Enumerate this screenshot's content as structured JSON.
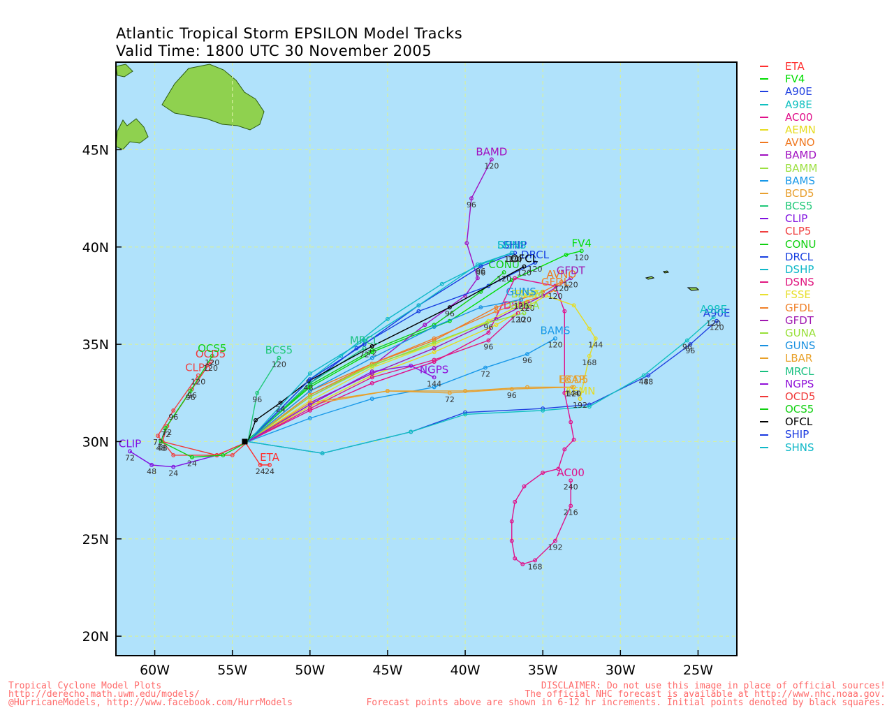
{
  "title": {
    "line1": "Atlantic Tropical Storm EPSILON Model Tracks",
    "line2": "Valid Time: 1800 UTC 30 November 2005"
  },
  "map": {
    "lon_range": [
      -62.5,
      -22.5
    ],
    "lat_range": [
      19,
      49.5
    ],
    "ocean_color": "#b0e2fb",
    "land_color": "#8fd14f",
    "grid_color": "#d6f0a0",
    "x_ticks": [
      "60W",
      "55W",
      "50W",
      "45W",
      "40W",
      "35W",
      "30W",
      "25W"
    ],
    "y_ticks": [
      "45N",
      "40N",
      "35N",
      "30N",
      "25N",
      "20N"
    ]
  },
  "legend": [
    {
      "name": "ETA",
      "color": "#ff3030"
    },
    {
      "name": "FV4",
      "color": "#00dd00"
    },
    {
      "name": "A90E",
      "color": "#2040e0"
    },
    {
      "name": "A98E",
      "color": "#10c0c0"
    },
    {
      "name": "AC00",
      "color": "#e0108a"
    },
    {
      "name": "AEMN",
      "color": "#e6dc20"
    },
    {
      "name": "AVNO",
      "color": "#f07820"
    },
    {
      "name": "BAMD",
      "color": "#a010c0"
    },
    {
      "name": "BAMM",
      "color": "#9ce040"
    },
    {
      "name": "BAMS",
      "color": "#1898e8"
    },
    {
      "name": "BCD5",
      "color": "#e8a030"
    },
    {
      "name": "BCS5",
      "color": "#20c878"
    },
    {
      "name": "CLIP",
      "color": "#8010e0"
    },
    {
      "name": "CLP5",
      "color": "#f04040"
    },
    {
      "name": "CONU",
      "color": "#10d010"
    },
    {
      "name": "DRCL",
      "color": "#1840e0"
    },
    {
      "name": "DSHP",
      "color": "#10b8c8"
    },
    {
      "name": "DSNS",
      "color": "#e01880"
    },
    {
      "name": "FSSE",
      "color": "#e8e030"
    },
    {
      "name": "GFDL",
      "color": "#f08028"
    },
    {
      "name": "GFDT",
      "color": "#a018b0"
    },
    {
      "name": "GUNA",
      "color": "#98e038"
    },
    {
      "name": "GUNS",
      "color": "#1890e0"
    },
    {
      "name": "LBAR",
      "color": "#e8a028"
    },
    {
      "name": "MRCL",
      "color": "#18c080"
    },
    {
      "name": "NGPS",
      "color": "#9010d8"
    },
    {
      "name": "OCD5",
      "color": "#f03838"
    },
    {
      "name": "OCS5",
      "color": "#10d010"
    },
    {
      "name": "OFCL",
      "color": "#000000"
    },
    {
      "name": "SHIP",
      "color": "#1838e0"
    },
    {
      "name": "SHNS",
      "color": "#10b8c8"
    }
  ],
  "tracks": [
    {
      "name": "ETA",
      "color": "#ff3030",
      "points": [
        [
          -54.2,
          30.0
        ],
        [
          -53.2,
          28.8
        ],
        [
          -52.6,
          28.8
        ]
      ],
      "hours": [
        "24",
        "24"
      ]
    },
    {
      "name": "FV4",
      "color": "#00dd00",
      "points": [
        [
          -54.0,
          30.1
        ],
        [
          -50.0,
          32.8
        ],
        [
          -46.0,
          34.6
        ],
        [
          -41.0,
          36.2
        ],
        [
          -37.0,
          38.3
        ],
        [
          -33.5,
          39.6
        ],
        [
          -32.5,
          39.8
        ]
      ],
      "hours": [
        "120"
      ]
    },
    {
      "name": "A90E",
      "color": "#2040e0",
      "points": [
        [
          -54.0,
          30.0
        ],
        [
          -49.2,
          29.4
        ],
        [
          -43.5,
          30.5
        ],
        [
          -40.0,
          31.5
        ],
        [
          -35.0,
          31.7
        ],
        [
          -32.0,
          31.9
        ],
        [
          -28.2,
          33.4
        ],
        [
          -25.5,
          35.0
        ],
        [
          -23.8,
          36.2
        ]
      ],
      "hours": [
        "48",
        "96",
        "120"
      ]
    },
    {
      "name": "A98E",
      "color": "#10c0c0",
      "points": [
        [
          -54.0,
          30.0
        ],
        [
          -49.2,
          29.4
        ],
        [
          -43.5,
          30.5
        ],
        [
          -40.0,
          31.4
        ],
        [
          -35.0,
          31.6
        ],
        [
          -32.0,
          31.8
        ],
        [
          -28.5,
          33.4
        ],
        [
          -25.7,
          35.2
        ],
        [
          -24.0,
          36.4
        ]
      ],
      "hours": [
        "48",
        "96",
        "120"
      ]
    },
    {
      "name": "AC00",
      "color": "#e0108a",
      "points": [
        [
          -54.0,
          30.0
        ],
        [
          -50.0,
          31.6
        ],
        [
          -46.0,
          33.0
        ],
        [
          -42.0,
          34.1
        ],
        [
          -38.5,
          35.6
        ],
        [
          -36.8,
          38.4
        ],
        [
          -34.2,
          38.0
        ],
        [
          -33.6,
          36.7
        ],
        [
          -33.6,
          32.5
        ],
        [
          -33.2,
          31.0
        ],
        [
          -33.0,
          30.1
        ],
        [
          -33.6,
          29.6
        ],
        [
          -34.0,
          28.6
        ],
        [
          -35.0,
          28.4
        ],
        [
          -36.2,
          27.7
        ],
        [
          -36.8,
          26.9
        ],
        [
          -37.0,
          25.9
        ],
        [
          -37.0,
          24.9
        ],
        [
          -36.8,
          24.0
        ],
        [
          -36.3,
          23.7
        ],
        [
          -35.5,
          23.9
        ],
        [
          -34.2,
          24.9
        ],
        [
          -33.2,
          26.7
        ],
        [
          -33.2,
          28.0
        ]
      ],
      "hours": [
        "168",
        "192",
        "216",
        "240"
      ]
    },
    {
      "name": "AEMN",
      "color": "#e6dc20",
      "points": [
        [
          -54.0,
          30.0
        ],
        [
          -50.0,
          31.8
        ],
        [
          -46.0,
          33.4
        ],
        [
          -42.0,
          34.6
        ],
        [
          -38.0,
          36.0
        ],
        [
          -34.8,
          37.5
        ],
        [
          -33.0,
          37.0
        ],
        [
          -32.0,
          35.8
        ],
        [
          -31.6,
          35.3
        ],
        [
          -32.0,
          34.4
        ],
        [
          -32.6,
          32.2
        ]
      ],
      "hours": [
        "144",
        "168",
        "192"
      ]
    },
    {
      "name": "AVNO",
      "color": "#f07820",
      "points": [
        [
          -54.0,
          30.0
        ],
        [
          -50.0,
          32.6
        ],
        [
          -46.0,
          34.0
        ],
        [
          -42.0,
          35.2
        ],
        [
          -38.0,
          36.9
        ],
        [
          -35.0,
          37.7
        ],
        [
          -33.8,
          38.2
        ]
      ],
      "hours": [
        "120"
      ]
    },
    {
      "name": "BAMD",
      "color": "#a010c0",
      "points": [
        [
          -54.0,
          30.0
        ],
        [
          -50.0,
          32.3
        ],
        [
          -45.8,
          34.0
        ],
        [
          -42.6,
          36.0
        ],
        [
          -40.0,
          37.5
        ],
        [
          -39.2,
          38.4
        ],
        [
          -39.9,
          40.2
        ],
        [
          -39.6,
          42.5
        ],
        [
          -38.3,
          44.5
        ]
      ],
      "hours": [
        "96",
        "120"
      ]
    },
    {
      "name": "BAMM",
      "color": "#9ce040",
      "points": [
        [
          -54.0,
          30.0
        ],
        [
          -50.0,
          32.4
        ],
        [
          -45.8,
          34.0
        ],
        [
          -42.0,
          35.0
        ],
        [
          -38.5,
          36.2
        ],
        [
          -36.0,
          37.2
        ]
      ],
      "hours": [
        "96",
        "120"
      ]
    },
    {
      "name": "BAMS",
      "color": "#1898e8",
      "points": [
        [
          -54.0,
          30.0
        ],
        [
          -50.0,
          31.2
        ],
        [
          -46.0,
          32.2
        ],
        [
          -42.0,
          32.8
        ],
        [
          -38.7,
          33.8
        ],
        [
          -36.0,
          34.5
        ],
        [
          -34.2,
          35.3
        ]
      ],
      "hours": [
        "72",
        "96",
        "120"
      ]
    },
    {
      "name": "BCD5",
      "color": "#e8a030",
      "points": [
        [
          -54.0,
          30.0
        ],
        [
          -50.0,
          31.9
        ],
        [
          -45.0,
          32.6
        ],
        [
          -41.0,
          32.5
        ],
        [
          -37.0,
          32.7
        ],
        [
          -33.0,
          32.8
        ]
      ],
      "hours": [
        "72",
        "96",
        "120"
      ]
    },
    {
      "name": "BCS5",
      "color": "#20c878",
      "points": [
        [
          -54.0,
          30.0
        ],
        [
          -53.4,
          32.5
        ],
        [
          -52.0,
          34.3
        ]
      ],
      "hours": [
        "96",
        "120"
      ]
    },
    {
      "name": "CLIP",
      "color": "#8010e0",
      "points": [
        [
          -54.0,
          30.0
        ],
        [
          -56.0,
          29.3
        ],
        [
          -58.8,
          28.7
        ],
        [
          -60.2,
          28.8
        ],
        [
          -61.6,
          29.5
        ]
      ],
      "hours": [
        "24",
        "48",
        "72"
      ]
    },
    {
      "name": "CLP5",
      "color": "#f04040",
      "points": [
        [
          -54.0,
          30.0
        ],
        [
          -55.0,
          29.3
        ],
        [
          -56.0,
          29.3
        ],
        [
          -58.8,
          29.3
        ],
        [
          -59.8,
          30.3
        ],
        [
          -58.8,
          31.6
        ],
        [
          -57.2,
          33.4
        ]
      ],
      "hours": [
        "72",
        "96",
        "120"
      ]
    },
    {
      "name": "CONU",
      "color": "#10d010",
      "points": [
        [
          -54.0,
          30.0
        ],
        [
          -50.0,
          32.9
        ],
        [
          -46.0,
          34.7
        ],
        [
          -42.0,
          36.0
        ],
        [
          -39.0,
          37.7
        ],
        [
          -37.5,
          38.7
        ]
      ],
      "hours": [
        "120"
      ]
    },
    {
      "name": "DRCL",
      "color": "#1840e0",
      "points": [
        [
          -54.0,
          30.0
        ],
        [
          -50.0,
          33.0
        ],
        [
          -47.0,
          34.8
        ],
        [
          -43.0,
          36.7
        ],
        [
          -38.5,
          38.0
        ],
        [
          -35.5,
          39.2
        ]
      ],
      "hours": [
        "120"
      ]
    },
    {
      "name": "DSHP",
      "color": "#10b8c8",
      "points": [
        [
          -54.0,
          30.0
        ],
        [
          -50.0,
          33.2
        ],
        [
          -48.0,
          34.4
        ],
        [
          -45.0,
          36.3
        ],
        [
          -41.5,
          38.1
        ],
        [
          -39.0,
          39.1
        ],
        [
          -37.0,
          39.7
        ]
      ],
      "hours": [
        "96",
        "120"
      ]
    },
    {
      "name": "DSNS",
      "color": "#e01880",
      "points": [
        [
          -54.0,
          30.0
        ],
        [
          -50.0,
          31.7
        ],
        [
          -46.0,
          33.3
        ],
        [
          -42.0,
          34.2
        ],
        [
          -38.5,
          35.2
        ],
        [
          -36.6,
          36.6
        ]
      ],
      "hours": [
        "96",
        "120"
      ]
    },
    {
      "name": "FSSE",
      "color": "#e8e030",
      "points": [
        [
          -54.0,
          30.0
        ],
        [
          -50.0,
          32.1
        ],
        [
          -46.0,
          33.8
        ],
        [
          -42.0,
          35.0
        ],
        [
          -38.5,
          36.2
        ],
        [
          -36.0,
          37.2
        ]
      ],
      "hours": [
        "120"
      ]
    },
    {
      "name": "GFDL",
      "color": "#f08028",
      "points": [
        [
          -54.0,
          30.0
        ],
        [
          -50.0,
          32.4
        ],
        [
          -46.0,
          34.0
        ],
        [
          -42.0,
          35.3
        ],
        [
          -38.0,
          36.7
        ],
        [
          -35.0,
          37.5
        ],
        [
          -34.2,
          37.8
        ]
      ],
      "hours": [
        "120"
      ]
    },
    {
      "name": "GFDT",
      "color": "#a018b0",
      "points": [
        [
          -54.0,
          30.0
        ],
        [
          -50.0,
          32.0
        ],
        [
          -46.0,
          33.5
        ],
        [
          -42.0,
          34.8
        ],
        [
          -38.0,
          36.3
        ],
        [
          -35.0,
          37.5
        ],
        [
          -33.2,
          38.4
        ]
      ],
      "hours": [
        "120"
      ]
    },
    {
      "name": "GUNA",
      "color": "#98e038",
      "points": [
        [
          -54.0,
          30.0
        ],
        [
          -50.0,
          32.3
        ],
        [
          -46.0,
          33.9
        ],
        [
          -42.0,
          35.1
        ],
        [
          -38.6,
          36.1
        ],
        [
          -36.2,
          36.6
        ]
      ],
      "hours": [
        "120"
      ]
    },
    {
      "name": "GUNS",
      "color": "#1890e0",
      "points": [
        [
          -54.0,
          30.0
        ],
        [
          -50.0,
          32.6
        ],
        [
          -46.0,
          34.3
        ],
        [
          -42.0,
          35.9
        ],
        [
          -39.0,
          36.9
        ],
        [
          -36.4,
          37.3
        ]
      ],
      "hours": [
        "120"
      ]
    },
    {
      "name": "LBAR",
      "color": "#e8a028",
      "points": [
        [
          -54.0,
          30.0
        ],
        [
          -50.0,
          32.0
        ],
        [
          -45.0,
          32.6
        ],
        [
          -40.0,
          32.6
        ],
        [
          -36.0,
          32.8
        ],
        [
          -33.1,
          32.8
        ]
      ],
      "hours": [
        "144"
      ]
    },
    {
      "name": "MRCL",
      "color": "#18c080",
      "points": [
        [
          -54.0,
          30.0
        ],
        [
          -50.0,
          33.0
        ],
        [
          -46.5,
          34.8
        ]
      ],
      "hours": [
        "72"
      ]
    },
    {
      "name": "NGPS",
      "color": "#9010d8",
      "points": [
        [
          -54.0,
          30.0
        ],
        [
          -50.0,
          31.9
        ],
        [
          -46.0,
          33.6
        ],
        [
          -43.5,
          33.9
        ],
        [
          -42.0,
          33.3
        ]
      ],
      "hours": [
        "144"
      ]
    },
    {
      "name": "OCD5",
      "color": "#f03838",
      "points": [
        [
          -54.0,
          30.0
        ],
        [
          -56.0,
          29.3
        ],
        [
          -59.5,
          30.0
        ],
        [
          -59.2,
          30.8
        ],
        [
          -57.6,
          32.7
        ],
        [
          -56.4,
          34.1
        ]
      ],
      "hours": [
        "48",
        "72",
        "96",
        "120"
      ]
    },
    {
      "name": "OCS5",
      "color": "#10d010",
      "points": [
        [
          -54.0,
          30.0
        ],
        [
          -55.6,
          29.3
        ],
        [
          -57.6,
          29.2
        ],
        [
          -59.6,
          30.0
        ],
        [
          -59.3,
          30.7
        ],
        [
          -57.7,
          32.6
        ],
        [
          -56.3,
          34.4
        ]
      ],
      "hours": [
        "24",
        "48",
        "72",
        "96",
        "120"
      ]
    },
    {
      "name": "OFCL",
      "color": "#000000",
      "points": [
        [
          -54.0,
          30.0
        ],
        [
          -53.5,
          31.1
        ],
        [
          -51.9,
          32.0
        ],
        [
          -50.1,
          33.1
        ],
        [
          -46.0,
          34.9
        ],
        [
          -41.0,
          36.9
        ],
        [
          -36.2,
          39.0
        ]
      ],
      "hours": [
        "24",
        "48",
        "72",
        "96",
        "120"
      ]
    },
    {
      "name": "SHIP",
      "color": "#1838e0",
      "points": [
        [
          -54.0,
          30.0
        ],
        [
          -50.0,
          33.2
        ],
        [
          -46.5,
          35.0
        ],
        [
          -43.0,
          37.0
        ],
        [
          -39.0,
          39.0
        ],
        [
          -36.8,
          39.7
        ]
      ],
      "hours": [
        "96",
        "120"
      ]
    },
    {
      "name": "SHNS",
      "color": "#10b8c8",
      "points": [
        [
          -54.0,
          30.0
        ],
        [
          -50.0,
          33.5
        ],
        [
          -46.5,
          35.2
        ],
        [
          -43.0,
          37.0
        ],
        [
          -39.2,
          39.1
        ],
        [
          -37.0,
          39.7
        ]
      ],
      "hours": [
        "120"
      ]
    }
  ],
  "footer": {
    "left1": "Tropical Cyclone Model Plots",
    "left2": "http://derecho.math.uwm.edu/models/",
    "left3": "@HurricaneModels, http://www.facebook.com/HurrModels",
    "right1": "DISCLAIMER: Do not use this image in place of official sources!",
    "right2": "The official NHC forecast is available at http://www.nhc.noaa.gov.",
    "right3": "Forecast points above are shown in 6-12 hr increments. Initial points denoted by black squares."
  }
}
